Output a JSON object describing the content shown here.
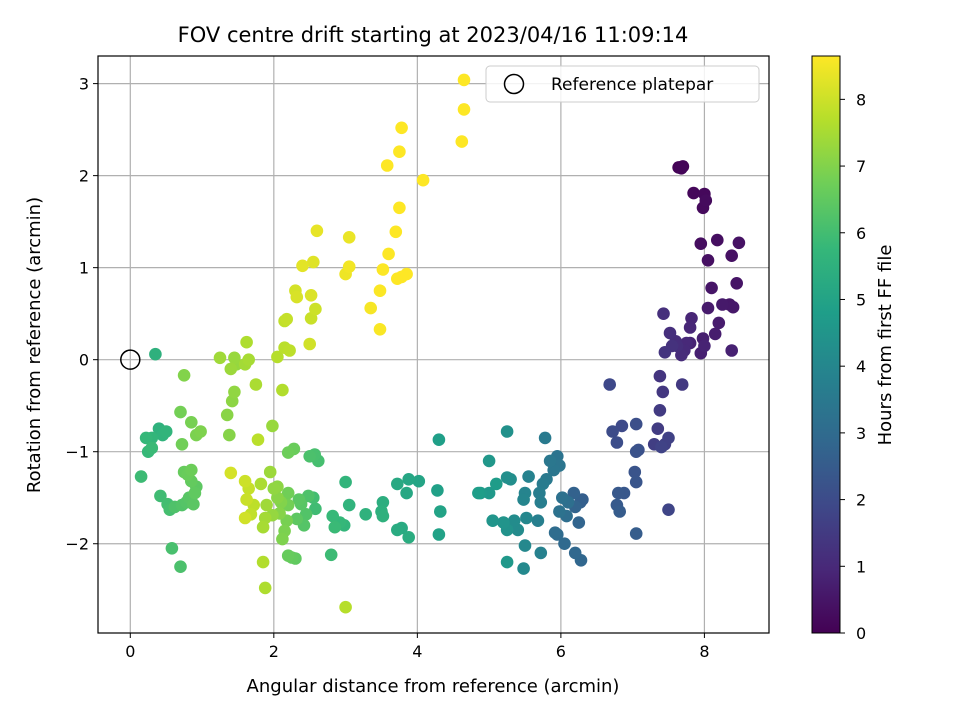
{
  "chart_data": {
    "type": "scatter",
    "title": "FOV centre drift starting at 2023/04/16 11:09:14",
    "xlabel": "Angular distance from reference (arcmin)",
    "ylabel": "Rotation from reference (arcmin)",
    "xlim": [
      -0.45,
      8.9
    ],
    "ylim": [
      -2.97,
      3.3
    ],
    "xticks": [
      0,
      2,
      4,
      6,
      8
    ],
    "yticks": [
      -2,
      -1,
      0,
      1,
      2,
      3
    ],
    "grid": true,
    "legend": {
      "placement": "top-right",
      "entries": [
        "Reference platepar"
      ]
    },
    "reference_point": {
      "x": 0,
      "y": 0,
      "label": "Reference platepar",
      "marker": "open-circle",
      "color": "#000000"
    },
    "colorbar": {
      "label": "Hours from first FF file",
      "range": [
        0,
        8.65
      ],
      "ticks": [
        0,
        1,
        2,
        3,
        4,
        5,
        6,
        7,
        8
      ],
      "colormap": "viridis",
      "colormap_stops": [
        "#440154",
        "#482878",
        "#3e4989",
        "#31688e",
        "#26828e",
        "#1f9e89",
        "#35b779",
        "#6ece58",
        "#b5de2b",
        "#fde725"
      ]
    },
    "points": [
      [
        7.64,
        2.09,
        0.05
      ],
      [
        7.7,
        2.1,
        0.08
      ],
      [
        7.68,
        2.08,
        0.1
      ],
      [
        7.85,
        1.81,
        0.15
      ],
      [
        8.0,
        1.8,
        0.18
      ],
      [
        7.98,
        1.65,
        0.22
      ],
      [
        8.02,
        1.73,
        0.25
      ],
      [
        7.95,
        1.26,
        0.3
      ],
      [
        8.18,
        1.3,
        0.33
      ],
      [
        8.05,
        1.08,
        0.37
      ],
      [
        8.38,
        1.13,
        0.4
      ],
      [
        8.48,
        1.27,
        0.43
      ],
      [
        8.45,
        0.83,
        0.47
      ],
      [
        8.1,
        0.78,
        0.5
      ],
      [
        8.35,
        0.6,
        0.53
      ],
      [
        8.4,
        0.57,
        0.57
      ],
      [
        8.25,
        0.6,
        0.6
      ],
      [
        8.05,
        0.56,
        0.63
      ],
      [
        8.2,
        0.4,
        0.67
      ],
      [
        8.15,
        0.28,
        0.7
      ],
      [
        7.98,
        0.23,
        0.73
      ],
      [
        7.95,
        0.07,
        0.77
      ],
      [
        8.38,
        0.1,
        0.8
      ],
      [
        8.0,
        0.15,
        0.83
      ],
      [
        7.8,
        0.18,
        0.86
      ],
      [
        7.82,
        0.45,
        0.9
      ],
      [
        7.8,
        0.35,
        0.93
      ],
      [
        7.7,
        0.14,
        0.97
      ],
      [
        7.75,
        0.18,
        1.0
      ],
      [
        7.72,
        0.1,
        1.03
      ],
      [
        7.68,
        0.05,
        1.07
      ],
      [
        7.6,
        0.2,
        1.1
      ],
      [
        7.62,
        0.15,
        1.13
      ],
      [
        7.52,
        0.29,
        1.17
      ],
      [
        7.43,
        0.5,
        1.2
      ],
      [
        7.55,
        0.15,
        1.25
      ],
      [
        7.45,
        0.08,
        1.3
      ],
      [
        7.38,
        -0.18,
        1.35
      ],
      [
        7.42,
        -0.35,
        1.4
      ],
      [
        7.69,
        -0.27,
        1.45
      ],
      [
        7.38,
        -0.55,
        1.5
      ],
      [
        7.35,
        -0.75,
        1.55
      ],
      [
        7.3,
        -0.92,
        1.6
      ],
      [
        7.45,
        -0.92,
        1.65
      ],
      [
        7.5,
        -0.85,
        1.7
      ],
      [
        7.4,
        -0.95,
        1.75
      ],
      [
        7.5,
        -1.63,
        1.8
      ],
      [
        6.68,
        -0.27,
        1.9
      ],
      [
        6.85,
        -0.72,
        1.95
      ],
      [
        6.72,
        -0.78,
        2.0
      ],
      [
        6.78,
        -0.9,
        2.05
      ],
      [
        7.05,
        -0.7,
        2.1
      ],
      [
        7.08,
        -0.98,
        2.15
      ],
      [
        7.05,
        -1.0,
        2.2
      ],
      [
        7.03,
        -1.22,
        2.25
      ],
      [
        7.05,
        -1.33,
        2.3
      ],
      [
        6.88,
        -1.45,
        2.35
      ],
      [
        6.8,
        -1.45,
        2.4
      ],
      [
        6.78,
        -1.58,
        2.45
      ],
      [
        6.82,
        -1.65,
        2.5
      ],
      [
        7.05,
        -1.89,
        2.55
      ],
      [
        6.3,
        -1.52,
        2.6
      ],
      [
        6.27,
        -1.55,
        2.65
      ],
      [
        6.18,
        -1.45,
        2.7
      ],
      [
        6.2,
        -1.6,
        2.75
      ],
      [
        6.25,
        -1.77,
        2.8
      ],
      [
        6.28,
        -2.18,
        2.85
      ],
      [
        6.2,
        -2.1,
        2.9
      ],
      [
        6.05,
        -2.0,
        2.95
      ],
      [
        5.95,
        -1.9,
        3.0
      ],
      [
        5.92,
        -1.88,
        3.05
      ],
      [
        6.08,
        -1.7,
        3.1
      ],
      [
        6.1,
        -1.55,
        3.15
      ],
      [
        6.02,
        -1.5,
        3.2
      ],
      [
        5.98,
        -1.65,
        3.25
      ],
      [
        5.95,
        -1.05,
        3.3
      ],
      [
        5.98,
        -1.15,
        3.35
      ],
      [
        5.9,
        -1.2,
        3.4
      ],
      [
        5.85,
        -1.1,
        3.45
      ],
      [
        5.8,
        -1.3,
        3.5
      ],
      [
        5.78,
        -0.85,
        3.55
      ],
      [
        5.75,
        -1.35,
        3.6
      ],
      [
        5.7,
        -1.45,
        3.65
      ],
      [
        5.72,
        -1.55,
        3.7
      ],
      [
        5.68,
        -1.75,
        3.75
      ],
      [
        5.72,
        -2.1,
        3.8
      ],
      [
        5.55,
        -1.27,
        3.85
      ],
      [
        5.5,
        -1.45,
        3.9
      ],
      [
        5.48,
        -1.52,
        3.95
      ],
      [
        5.52,
        -1.72,
        4.0
      ],
      [
        5.5,
        -2.02,
        4.05
      ],
      [
        5.48,
        -2.27,
        4.1
      ],
      [
        5.4,
        -1.85,
        4.15
      ],
      [
        5.35,
        -1.75,
        4.2
      ],
      [
        5.3,
        -1.3,
        4.25
      ],
      [
        5.25,
        -1.28,
        4.3
      ],
      [
        5.25,
        -0.78,
        4.35
      ],
      [
        5.25,
        -1.85,
        4.4
      ],
      [
        5.2,
        -1.77,
        4.45
      ],
      [
        5.05,
        -1.75,
        4.5
      ],
      [
        5.0,
        -1.1,
        4.55
      ],
      [
        5.25,
        -2.2,
        4.6
      ],
      [
        5.0,
        -1.45,
        4.65
      ],
      [
        4.88,
        -1.45,
        4.7
      ],
      [
        5.1,
        -1.35,
        4.75
      ],
      [
        4.85,
        -1.45,
        4.8
      ],
      [
        4.3,
        -0.87,
        4.85
      ],
      [
        4.28,
        -1.42,
        4.9
      ],
      [
        4.3,
        -1.9,
        4.95
      ],
      [
        4.32,
        -1.65,
        5.0
      ],
      [
        4.02,
        -1.32,
        5.05
      ],
      [
        3.88,
        -1.3,
        5.1
      ],
      [
        3.85,
        -1.45,
        5.15
      ],
      [
        3.72,
        -1.35,
        5.2
      ],
      [
        3.78,
        -1.83,
        5.25
      ],
      [
        3.72,
        -1.85,
        5.3
      ],
      [
        3.88,
        -1.93,
        5.35
      ],
      [
        3.52,
        -1.55,
        5.4
      ],
      [
        3.5,
        -1.65,
        5.45
      ],
      [
        3.52,
        -1.7,
        5.5
      ],
      [
        3.28,
        -1.68,
        5.55
      ],
      [
        3.05,
        -1.58,
        5.6
      ],
      [
        3.0,
        -1.33,
        5.65
      ],
      [
        2.98,
        -1.8,
        5.7
      ],
      [
        2.92,
        -1.77,
        5.75
      ],
      [
        2.82,
        -1.7,
        5.8
      ],
      [
        2.85,
        -1.82,
        5.85
      ],
      [
        2.8,
        -2.12,
        5.9
      ],
      [
        2.58,
        -1.62,
        5.95
      ],
      [
        2.55,
        -1.5,
        6.0
      ],
      [
        2.62,
        -1.1,
        6.05
      ],
      [
        2.57,
        -1.03,
        6.1
      ],
      [
        2.5,
        -1.05,
        6.15
      ],
      [
        2.48,
        -1.48,
        6.2
      ],
      [
        2.45,
        -1.68,
        6.25
      ],
      [
        2.42,
        -1.8,
        6.3
      ],
      [
        2.38,
        -1.57,
        6.35
      ],
      [
        2.35,
        -1.52,
        6.4
      ],
      [
        2.32,
        -1.73,
        6.45
      ],
      [
        2.3,
        -2.16,
        6.5
      ],
      [
        2.25,
        -2.15,
        6.55
      ],
      [
        2.2,
        -2.13,
        6.6
      ],
      [
        2.28,
        -0.97,
        6.65
      ],
      [
        2.2,
        -1.01,
        6.7
      ],
      [
        2.2,
        -1.45,
        6.75
      ],
      [
        2.2,
        -1.58,
        6.8
      ],
      [
        2.18,
        -1.75,
        6.85
      ],
      [
        2.15,
        -1.86,
        6.9
      ],
      [
        2.12,
        -1.95,
        6.95
      ],
      [
        2.1,
        -1.55,
        7.0
      ],
      [
        2.08,
        -1.67,
        7.05
      ],
      [
        2.05,
        -1.5,
        7.1
      ],
      [
        2.05,
        -1.38,
        7.15
      ],
      [
        2.0,
        -1.4,
        7.2
      ],
      [
        1.98,
        -1.69,
        7.25
      ],
      [
        1.98,
        -0.72,
        7.3
      ],
      [
        1.95,
        -1.22,
        7.35
      ],
      [
        1.9,
        -1.58,
        7.4
      ],
      [
        1.88,
        -1.72,
        7.45
      ],
      [
        1.85,
        -1.82,
        7.5
      ],
      [
        1.82,
        -1.35,
        7.55
      ],
      [
        1.88,
        -2.48,
        7.6
      ],
      [
        1.85,
        -2.2,
        7.65
      ],
      [
        3.0,
        -2.69,
        7.7
      ],
      [
        1.78,
        -0.87,
        7.75
      ],
      [
        1.72,
        -1.58,
        7.8
      ],
      [
        1.68,
        -1.68,
        7.85
      ],
      [
        1.65,
        -1.4,
        7.9
      ],
      [
        1.62,
        -1.52,
        7.95
      ],
      [
        1.6,
        -1.32,
        8.0
      ],
      [
        1.6,
        -1.72,
        8.05
      ],
      [
        1.4,
        -1.23,
        8.1
      ],
      [
        0.35,
        0.06,
        5.5
      ],
      [
        0.4,
        -0.75,
        5.55
      ],
      [
        0.45,
        -0.82,
        5.6
      ],
      [
        0.5,
        -0.78,
        5.65
      ],
      [
        0.3,
        -0.85,
        5.7
      ],
      [
        0.22,
        -0.85,
        5.75
      ],
      [
        0.25,
        -1.0,
        5.8
      ],
      [
        0.3,
        -0.96,
        5.85
      ],
      [
        0.15,
        -1.27,
        5.9
      ],
      [
        0.42,
        -1.48,
        5.95
      ],
      [
        0.52,
        -1.57,
        6.0
      ],
      [
        0.55,
        -1.63,
        6.05
      ],
      [
        0.58,
        -2.05,
        6.1
      ],
      [
        0.7,
        -2.25,
        6.15
      ],
      [
        0.62,
        -1.6,
        6.2
      ],
      [
        0.72,
        -1.58,
        6.25
      ],
      [
        0.78,
        -1.55,
        6.3
      ],
      [
        0.82,
        -1.5,
        6.35
      ],
      [
        0.88,
        -1.57,
        6.4
      ],
      [
        0.92,
        -1.38,
        6.45
      ],
      [
        0.9,
        -1.45,
        6.5
      ],
      [
        0.85,
        -1.32,
        6.55
      ],
      [
        0.75,
        -1.22,
        6.6
      ],
      [
        0.8,
        -1.25,
        6.65
      ],
      [
        0.85,
        -1.2,
        6.7
      ],
      [
        0.72,
        -0.92,
        6.75
      ],
      [
        0.7,
        -0.57,
        6.8
      ],
      [
        0.85,
        -0.68,
        6.85
      ],
      [
        0.92,
        -0.82,
        6.9
      ],
      [
        0.98,
        -0.78,
        6.95
      ],
      [
        0.75,
        -0.17,
        7.0
      ],
      [
        1.38,
        -0.82,
        7.05
      ],
      [
        1.35,
        -0.6,
        7.1
      ],
      [
        1.42,
        -0.45,
        7.15
      ],
      [
        1.45,
        -0.35,
        7.2
      ],
      [
        1.48,
        -0.05,
        7.25
      ],
      [
        1.45,
        0.02,
        7.3
      ],
      [
        1.4,
        -0.1,
        7.35
      ],
      [
        1.25,
        0.02,
        7.4
      ],
      [
        1.6,
        -0.05,
        7.45
      ],
      [
        1.65,
        0.0,
        7.5
      ],
      [
        1.75,
        -0.27,
        7.55
      ],
      [
        1.62,
        0.19,
        7.6
      ],
      [
        2.12,
        -0.33,
        7.65
      ],
      [
        2.05,
        0.03,
        7.7
      ],
      [
        2.15,
        0.13,
        7.75
      ],
      [
        2.22,
        0.1,
        7.8
      ],
      [
        2.15,
        0.42,
        7.85
      ],
      [
        2.18,
        0.44,
        7.9
      ],
      [
        2.52,
        0.45,
        7.95
      ],
      [
        2.58,
        0.55,
        8.0
      ],
      [
        2.5,
        0.17,
        8.05
      ],
      [
        2.3,
        0.75,
        8.1
      ],
      [
        2.32,
        0.68,
        8.15
      ],
      [
        2.52,
        0.7,
        8.2
      ],
      [
        2.55,
        1.06,
        8.25
      ],
      [
        2.4,
        1.02,
        8.3
      ],
      [
        2.6,
        1.4,
        8.35
      ],
      [
        3.05,
        1.33,
        8.4
      ],
      [
        3.0,
        0.93,
        8.45
      ],
      [
        3.05,
        1.01,
        8.5
      ],
      [
        3.35,
        0.56,
        8.55
      ],
      [
        3.48,
        0.33,
        8.6
      ],
      [
        3.48,
        0.75,
        8.62
      ],
      [
        3.52,
        0.98,
        8.63
      ],
      [
        3.6,
        1.15,
        8.64
      ],
      [
        3.7,
        1.39,
        8.65
      ],
      [
        3.75,
        1.65,
        8.66
      ],
      [
        3.72,
        0.88,
        8.67
      ],
      [
        3.78,
        0.9,
        8.68
      ],
      [
        3.85,
        0.93,
        8.7
      ],
      [
        3.58,
        2.11,
        8.72
      ],
      [
        3.75,
        2.26,
        8.73
      ],
      [
        3.78,
        2.52,
        8.74
      ],
      [
        4.08,
        1.95,
        8.75
      ],
      [
        4.62,
        2.37,
        8.77
      ],
      [
        4.65,
        2.72,
        8.78
      ],
      [
        4.65,
        3.04,
        8.8
      ]
    ]
  }
}
